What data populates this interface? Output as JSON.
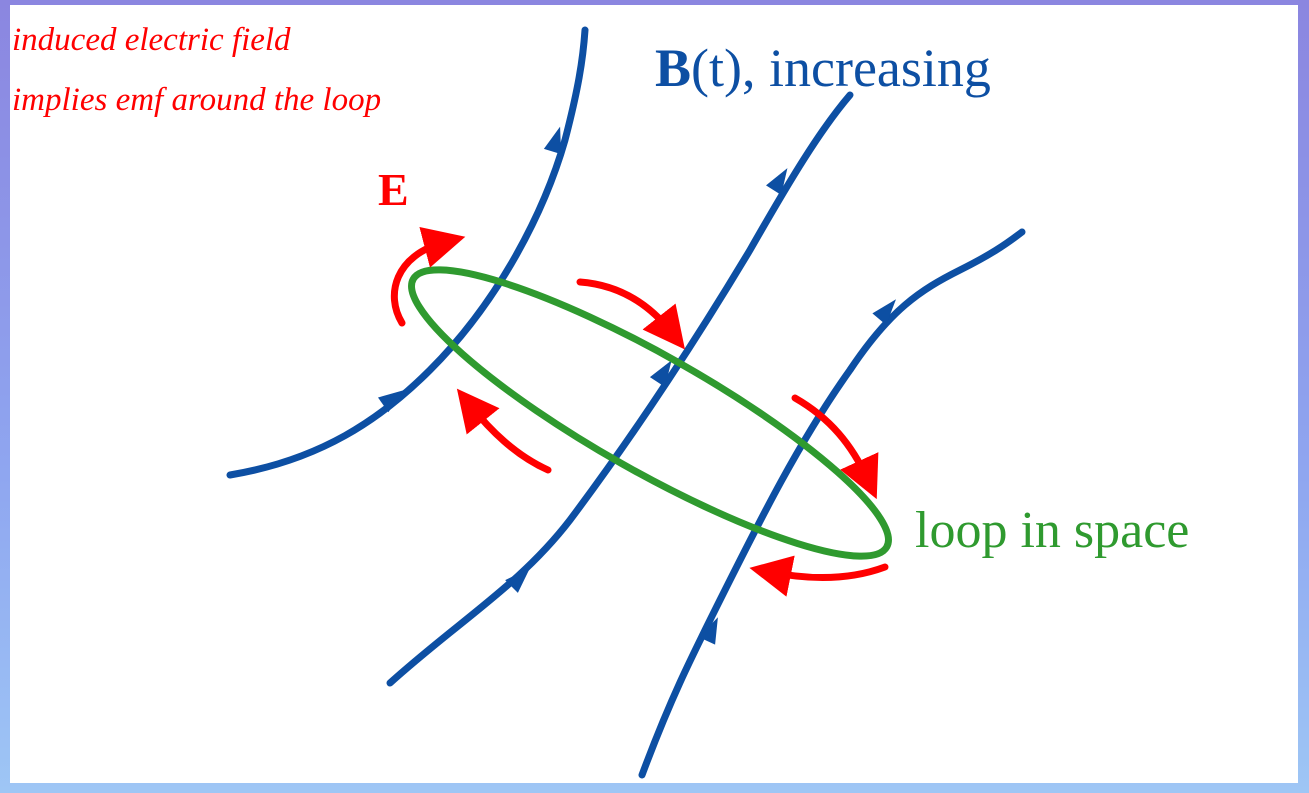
{
  "annotation": {
    "lines": [
      "induced electric field",
      "implies emf around the loop"
    ]
  },
  "labels": {
    "electric_field": "E",
    "magnetic_field_symbol": "B",
    "magnetic_field_text": "(t), increasing",
    "loop": "loop in space"
  }
}
